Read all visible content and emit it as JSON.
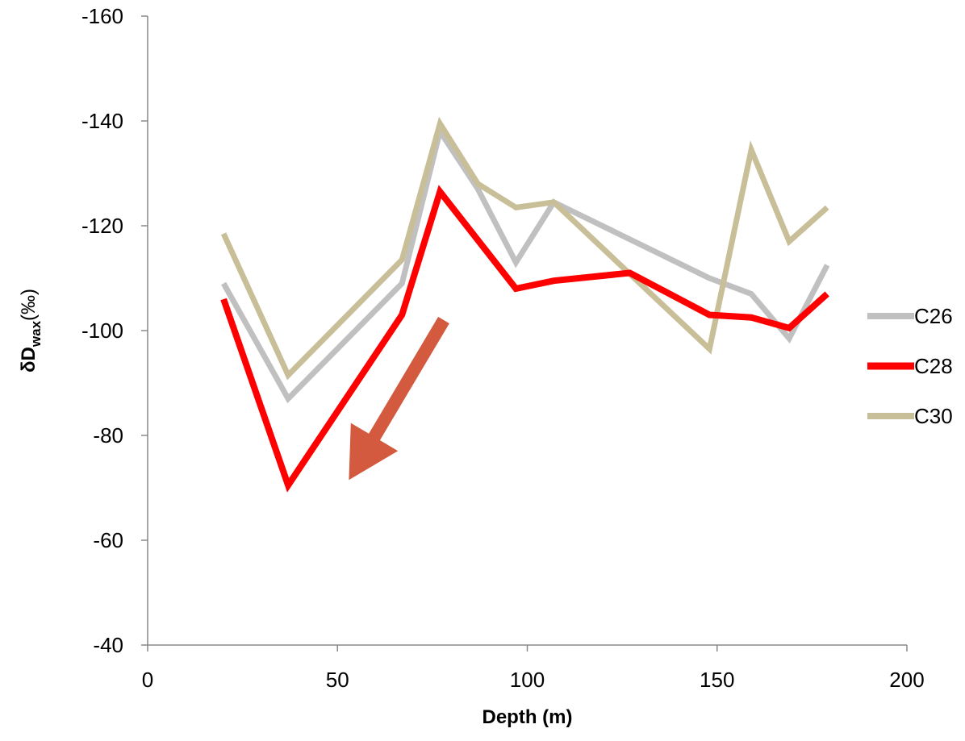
{
  "chart_data": {
    "type": "line",
    "title": "",
    "xlabel": "Depth (m)",
    "ylabel": {
      "main": "δD",
      "sub": "wax",
      "unit": "(‰)"
    },
    "xlim": [
      0,
      200
    ],
    "ylim": [
      -40,
      -160
    ],
    "y_axis_reversed": true,
    "x_ticks": [
      0,
      50,
      100,
      150,
      200
    ],
    "y_ticks": [
      -40,
      -60,
      -80,
      -100,
      -120,
      -140,
      -160
    ],
    "grid": false,
    "legend_position": "right",
    "series": [
      {
        "name": "C26",
        "color": "#c0c0c0",
        "x": [
          20,
          37,
          67,
          77,
          87,
          97,
          107,
          148,
          159,
          169,
          179
        ],
        "y": [
          -109,
          -87,
          -109,
          -138,
          -127,
          -113,
          -124.5,
          -110,
          -107,
          -98.5,
          -112.5
        ]
      },
      {
        "name": "C28",
        "color": "#ff0000",
        "x": [
          20,
          37,
          67,
          77,
          97,
          107,
          127,
          148,
          159,
          169,
          179
        ],
        "y": [
          -106,
          -70.5,
          -103,
          -126.5,
          -108,
          -109.5,
          -111,
          -103,
          -102.5,
          -100.5,
          -107
        ]
      },
      {
        "name": "C30",
        "color": "#c8bf99",
        "x": [
          20,
          37,
          67,
          77,
          87,
          97,
          107,
          148,
          159,
          169,
          179
        ],
        "y": [
          -118.5,
          -91.5,
          -113.5,
          -139.5,
          -128,
          -123.5,
          -124.5,
          -96.5,
          -134.5,
          -117,
          -123.5
        ]
      }
    ],
    "annotations": [
      {
        "type": "arrow",
        "color": "#d45a3f",
        "from": [
          78,
          -102
        ],
        "to": [
          53,
          -71.5
        ]
      }
    ]
  }
}
